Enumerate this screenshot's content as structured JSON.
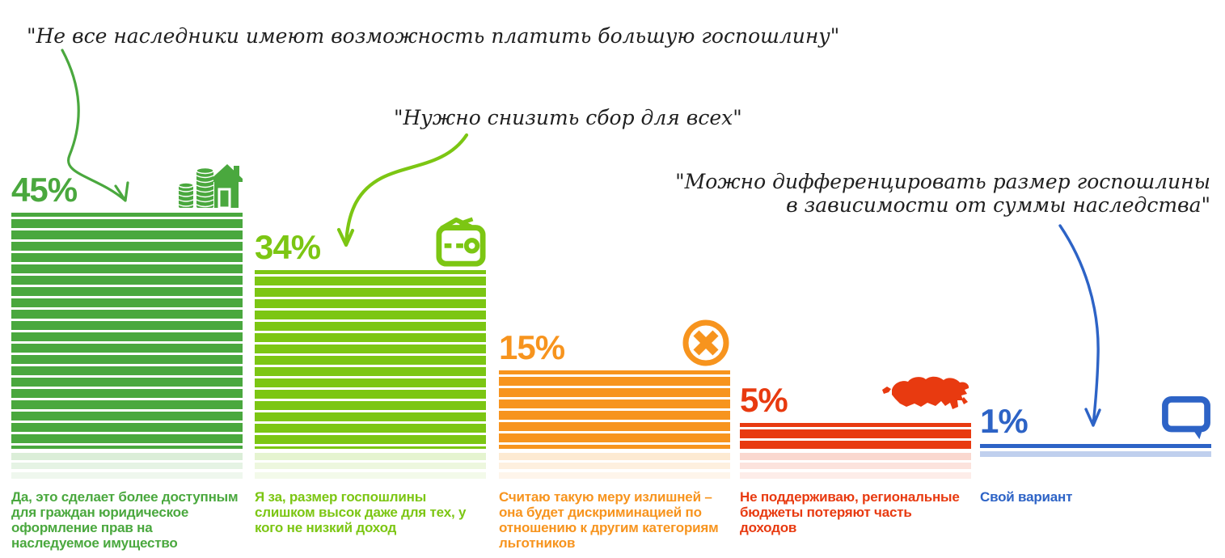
{
  "quotes": [
    {
      "text": "\"Не все наследники имеют возможность платить большую госпошлину\""
    },
    {
      "text": "\"Нужно снизить сбор для всех\""
    },
    {
      "text": "\"Можно дифференцировать размер госпошлины\nв зависимости от суммы наследства\""
    }
  ],
  "colors": {
    "arrow_green": "#4aa83e",
    "arrow_light_green": "#7cc613",
    "arrow_blue": "#2d63c6",
    "quote_text": "#1f1f1f",
    "background": "#ffffff"
  },
  "chart_data": {
    "type": "bar",
    "title": "",
    "unit": "%",
    "ylim": [
      0,
      45
    ],
    "grid": false,
    "legend": "none",
    "categories": [
      "Да, это сделает более доступным для граждан юридическое оформление прав на наследуемое имущество",
      "Я за, размер госпошлины слишком высок даже для тех, у кого не низкий доход",
      "Считаю такую меру излишней – она будет дискриминацией по отношению к другим категориям льготников",
      "Не поддерживаю, региональные бюджеты потеряют часть доходов",
      "Свой вариант"
    ],
    "values": [
      45,
      34,
      15,
      5,
      1
    ],
    "options": [
      {
        "value": 45,
        "label": "45%",
        "caption": "Да, это сделает более доступным для граждан юридическое оформление прав на наследуемое имущество",
        "color": "#4aa83e",
        "icon": "coins-house-icon",
        "reflections": 3
      },
      {
        "value": 34,
        "label": "34%",
        "caption": "Я за, размер госпошлины слишком высок даже для тех, у кого не низкий доход",
        "color": "#7cc613",
        "icon": "wallet-icon",
        "reflections": 3
      },
      {
        "value": 15,
        "label": "15%",
        "caption": "Считаю такую меру излишней – она будет дискриминацией по отношению к другим категориям льготников",
        "color": "#f7941e",
        "icon": "cross-circle-icon",
        "reflections": 3
      },
      {
        "value": 5,
        "label": "5%",
        "caption": "Не поддерживаю, региональные бюджеты потеряют часть доходов",
        "color": "#e83a10",
        "icon": "russia-map-icon",
        "reflections": 3
      },
      {
        "value": 1,
        "label": "1%",
        "caption": "Свой вариант",
        "color": "#2d63c6",
        "icon": "speech-bubble-icon",
        "reflections": 1
      }
    ]
  }
}
